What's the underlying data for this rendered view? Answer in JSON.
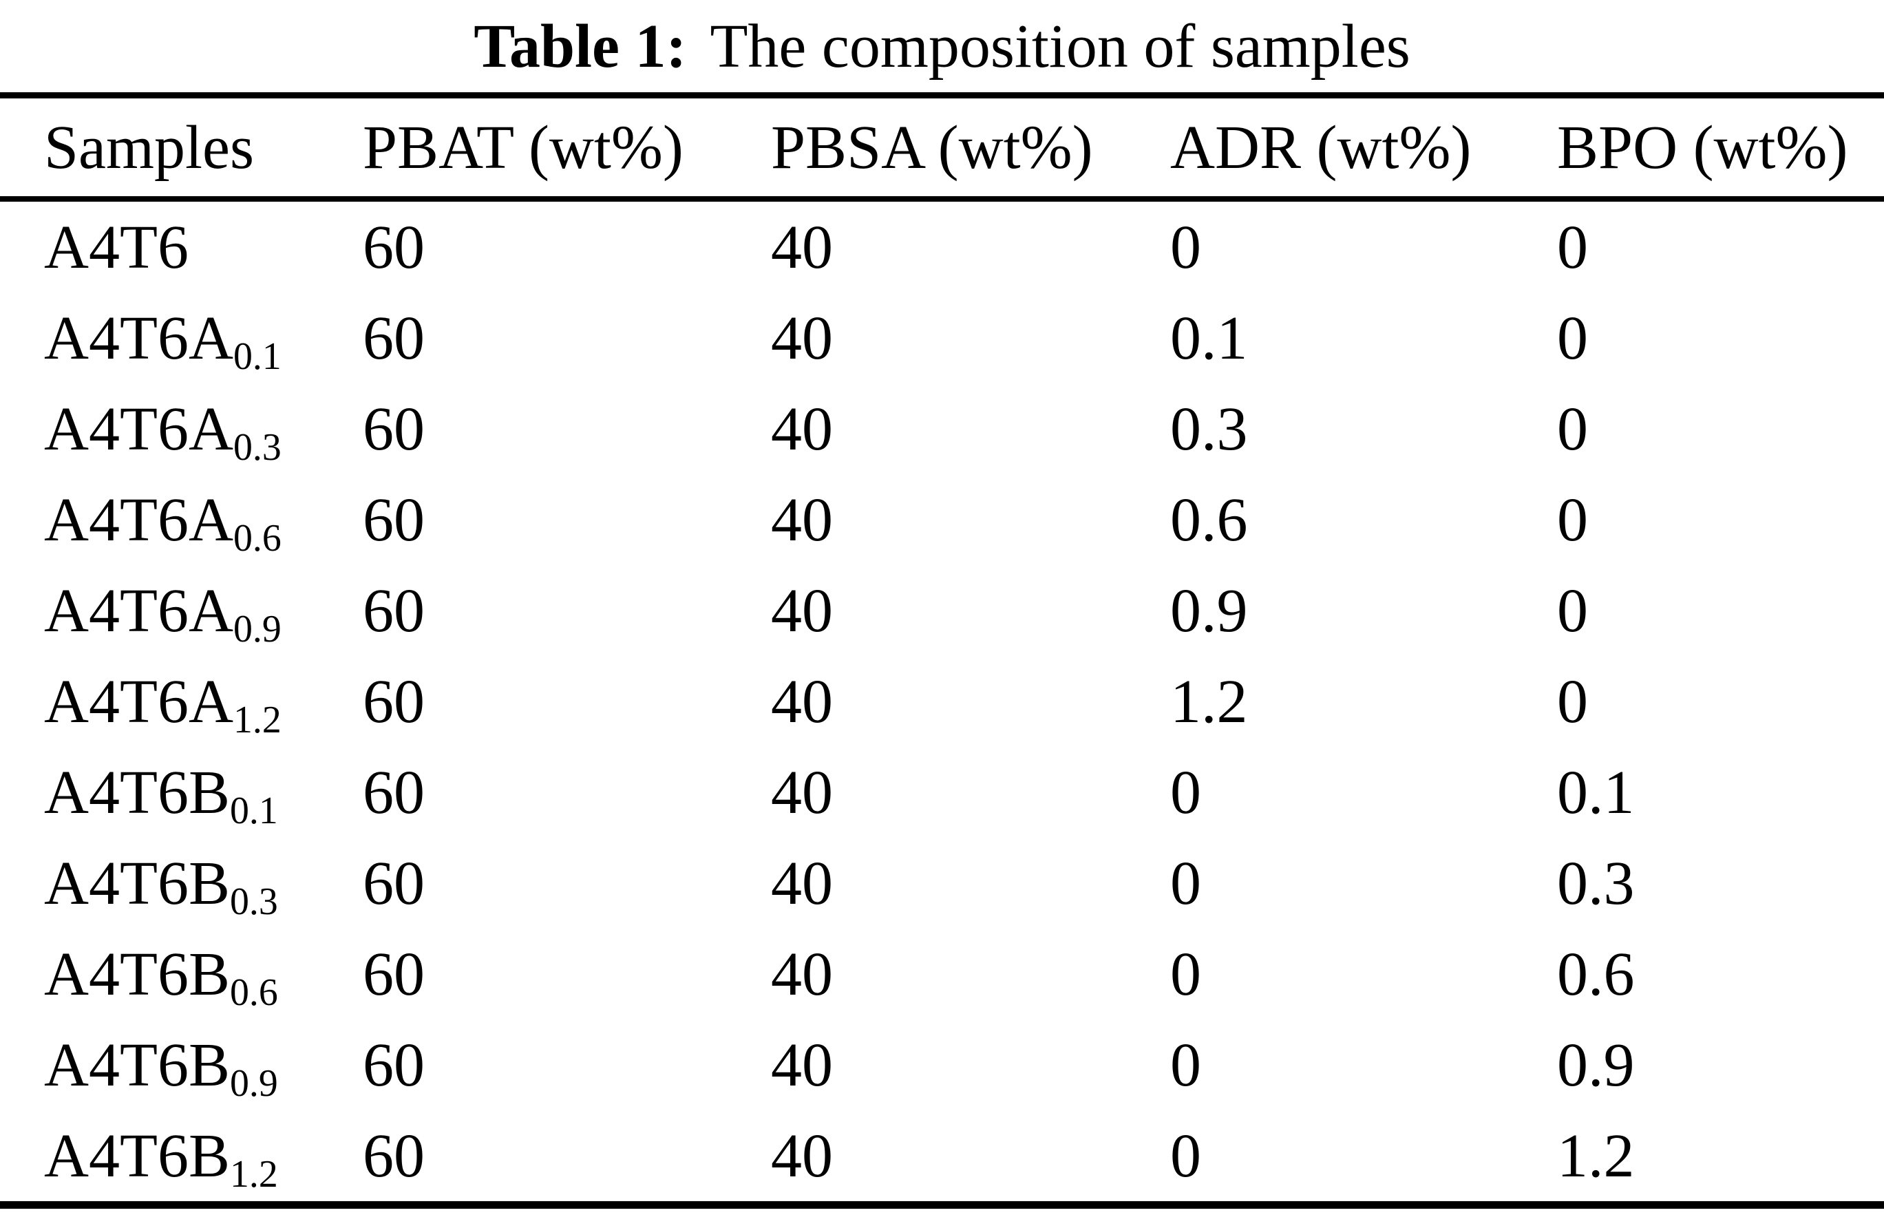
{
  "title": {
    "label": "Table 1:",
    "text": "The composition of samples"
  },
  "colors": {
    "text": "#000000",
    "background": "#ffffff",
    "rule": "#000000"
  },
  "table": {
    "columns": [
      "Samples",
      "PBAT (wt%)",
      "PBSA (wt%)",
      "ADR (wt%)",
      "BPO (wt%)"
    ],
    "rows": [
      {
        "sample_base": "A4T6",
        "sample_sub": "",
        "pbat": "60",
        "pbsa": "40",
        "adr": "0",
        "bpo": "0"
      },
      {
        "sample_base": "A4T6A",
        "sample_sub": "0.1",
        "pbat": "60",
        "pbsa": "40",
        "adr": "0.1",
        "bpo": "0"
      },
      {
        "sample_base": "A4T6A",
        "sample_sub": "0.3",
        "pbat": "60",
        "pbsa": "40",
        "adr": "0.3",
        "bpo": "0"
      },
      {
        "sample_base": "A4T6A",
        "sample_sub": "0.6",
        "pbat": "60",
        "pbsa": "40",
        "adr": "0.6",
        "bpo": "0"
      },
      {
        "sample_base": "A4T6A",
        "sample_sub": "0.9",
        "pbat": "60",
        "pbsa": "40",
        "adr": "0.9",
        "bpo": "0"
      },
      {
        "sample_base": "A4T6A",
        "sample_sub": "1.2",
        "pbat": "60",
        "pbsa": "40",
        "adr": "1.2",
        "bpo": "0"
      },
      {
        "sample_base": "A4T6B",
        "sample_sub": "0.1",
        "pbat": "60",
        "pbsa": "40",
        "adr": "0",
        "bpo": "0.1"
      },
      {
        "sample_base": "A4T6B",
        "sample_sub": "0.3",
        "pbat": "60",
        "pbsa": "40",
        "adr": "0",
        "bpo": "0.3"
      },
      {
        "sample_base": "A4T6B",
        "sample_sub": "0.6",
        "pbat": "60",
        "pbsa": "40",
        "adr": "0",
        "bpo": "0.6"
      },
      {
        "sample_base": "A4T6B",
        "sample_sub": "0.9",
        "pbat": "60",
        "pbsa": "40",
        "adr": "0",
        "bpo": "0.9"
      },
      {
        "sample_base": "A4T6B",
        "sample_sub": "1.2",
        "pbat": "60",
        "pbsa": "40",
        "adr": "0",
        "bpo": "1.2"
      }
    ]
  }
}
